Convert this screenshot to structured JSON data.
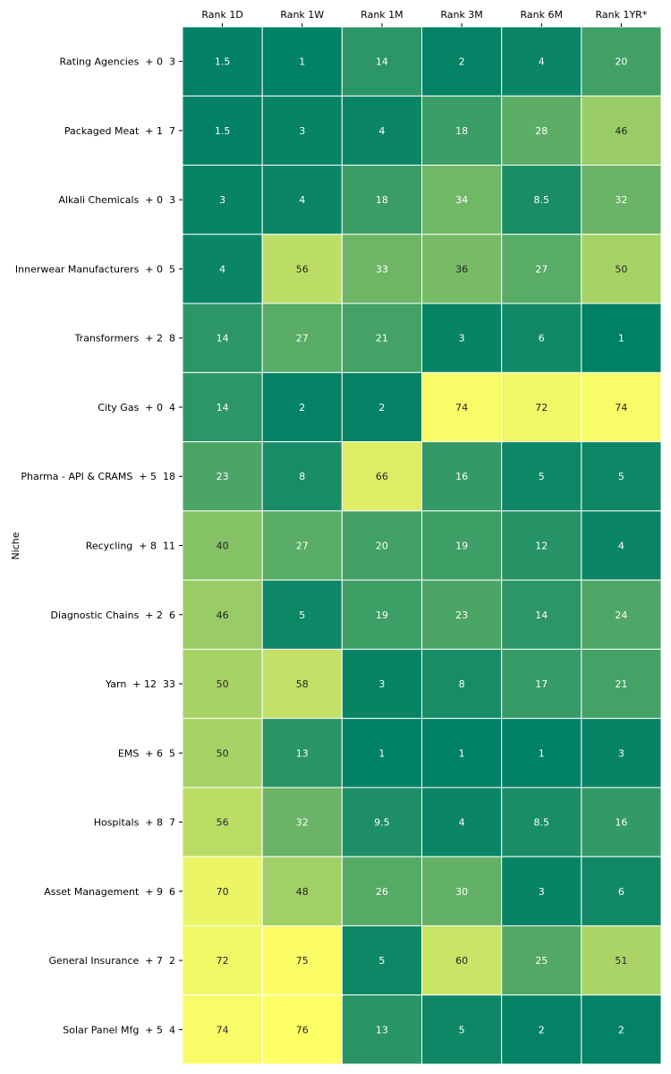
{
  "chart_data": {
    "type": "heatmap",
    "title": "",
    "xlabel": "",
    "ylabel": "Niche",
    "columns": [
      "Rank 1D",
      "Rank 1W",
      "Rank 1M",
      "Rank 3M",
      "Rank 6M",
      "Rank 1YR*"
    ],
    "rows": [
      "Rating Agencies  + 0  3",
      "Packaged Meat  + 1  7",
      "Alkali Chemicals  + 0  3",
      "Innerwear Manufacturers  + 0  5",
      "Transformers  + 2  8",
      "City Gas  + 0  4",
      "Pharma - API & CRAMS  + 5  18",
      "Recycling  + 8  11",
      "Diagnostic Chains  + 2  6",
      "Yarn  + 12  33",
      "EMS  + 6  5",
      "Hospitals  + 8  7",
      "Asset Management  + 9  6",
      "General Insurance  + 7  2",
      "Solar Panel Mfg  + 5  4"
    ],
    "values": [
      [
        1.5,
        1,
        14,
        2,
        4,
        20
      ],
      [
        1.5,
        3,
        4,
        18,
        28,
        46
      ],
      [
        3,
        4,
        18,
        34,
        8.5,
        32
      ],
      [
        4,
        56,
        33,
        36,
        27,
        50
      ],
      [
        14,
        27,
        21,
        3,
        6,
        1
      ],
      [
        14,
        2,
        2,
        74,
        72,
        74
      ],
      [
        23,
        8,
        66,
        16,
        5,
        5
      ],
      [
        40,
        27,
        20,
        19,
        12,
        4
      ],
      [
        46,
        5,
        19,
        23,
        14,
        24
      ],
      [
        50,
        58,
        3,
        8,
        17,
        21
      ],
      [
        50,
        13,
        1,
        1,
        1,
        3
      ],
      [
        56,
        32,
        9.5,
        4,
        8.5,
        16
      ],
      [
        70,
        48,
        26,
        30,
        3,
        6
      ],
      [
        72,
        75,
        5,
        60,
        25,
        51
      ],
      [
        74,
        76,
        13,
        5,
        2,
        2
      ]
    ],
    "colormap": "summer",
    "vmin": 1,
    "vmax": 76,
    "colors": {
      "low": "#008066",
      "high": "#ffff66",
      "grid": "#ffffff",
      "text_dark": "#262626",
      "text_light": "#ffffff"
    }
  }
}
